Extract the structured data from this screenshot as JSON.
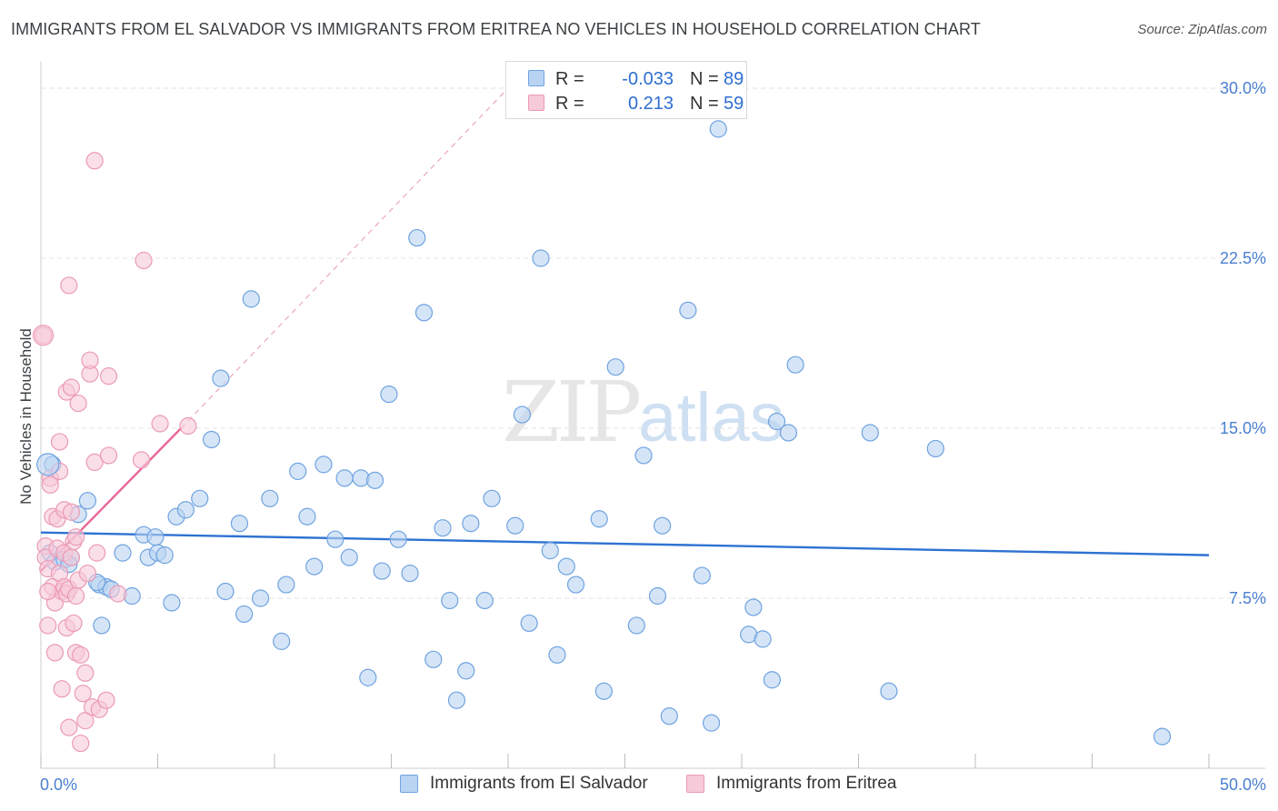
{
  "chart_data": {
    "type": "scatter",
    "title": "IMMIGRANTS FROM EL SALVADOR VS IMMIGRANTS FROM ERITREA NO VEHICLES IN HOUSEHOLD CORRELATION CHART",
    "source": "Source: ZipAtlas.com",
    "xlabel": "",
    "ylabel": "No Vehicles in Household",
    "xlim": [
      0,
      50
    ],
    "ylim": [
      0,
      30
    ],
    "x_tick_labels": [
      "0.0%",
      "50.0%"
    ],
    "y_ticks": [
      7.5,
      15.0,
      22.5,
      30.0
    ],
    "y_tick_labels": [
      "7.5%",
      "15.0%",
      "22.5%",
      "30.0%"
    ],
    "watermark": "ZIPatlas",
    "legend": {
      "rows": [
        {
          "r_label": "R =",
          "r_value": "-0.033",
          "n_label": "N =",
          "n_value": "89"
        },
        {
          "r_label": "R =",
          "r_value": "0.213",
          "n_label": "N =",
          "n_value": "59"
        }
      ]
    },
    "series": [
      {
        "name": "Immigrants from El Salvador",
        "color": "#6fa3e0",
        "fill": "#b9d3f2",
        "trend": {
          "x": [
            0,
            50
          ],
          "y": [
            10.4,
            9.4
          ],
          "color": "#2e72d2"
        },
        "points": [
          [
            0.5,
            13.4
          ],
          [
            0.4,
            9.5
          ],
          [
            0.6,
            9.1
          ],
          [
            1.0,
            9.2
          ],
          [
            1.3,
            9.3
          ],
          [
            1.6,
            11.2
          ],
          [
            1.2,
            9.0
          ],
          [
            2.0,
            11.8
          ],
          [
            2.5,
            8.1
          ],
          [
            2.8,
            8.0
          ],
          [
            3.0,
            7.9
          ],
          [
            2.4,
            8.2
          ],
          [
            2.6,
            6.3
          ],
          [
            3.5,
            9.5
          ],
          [
            3.9,
            7.6
          ],
          [
            4.4,
            10.3
          ],
          [
            4.6,
            9.3
          ],
          [
            5.0,
            9.5
          ],
          [
            5.3,
            9.4
          ],
          [
            4.9,
            10.2
          ],
          [
            5.6,
            7.3
          ],
          [
            5.8,
            11.1
          ],
          [
            6.2,
            11.4
          ],
          [
            6.8,
            11.9
          ],
          [
            7.3,
            14.5
          ],
          [
            7.7,
            17.2
          ],
          [
            7.9,
            7.8
          ],
          [
            8.5,
            10.8
          ],
          [
            8.7,
            6.8
          ],
          [
            9.0,
            20.7
          ],
          [
            9.4,
            7.5
          ],
          [
            9.8,
            11.9
          ],
          [
            10.3,
            5.6
          ],
          [
            10.5,
            8.1
          ],
          [
            11.0,
            13.1
          ],
          [
            11.4,
            11.1
          ],
          [
            11.7,
            8.9
          ],
          [
            12.1,
            13.4
          ],
          [
            12.6,
            10.1
          ],
          [
            13.0,
            12.8
          ],
          [
            13.2,
            9.3
          ],
          [
            13.7,
            12.8
          ],
          [
            14.0,
            4.0
          ],
          [
            14.3,
            12.7
          ],
          [
            14.6,
            8.7
          ],
          [
            14.9,
            16.5
          ],
          [
            15.3,
            10.1
          ],
          [
            15.8,
            8.6
          ],
          [
            16.1,
            23.4
          ],
          [
            16.4,
            20.1
          ],
          [
            16.8,
            4.8
          ],
          [
            17.2,
            10.6
          ],
          [
            17.5,
            7.4
          ],
          [
            17.8,
            3.0
          ],
          [
            18.2,
            4.3
          ],
          [
            18.4,
            10.8
          ],
          [
            19.0,
            7.4
          ],
          [
            19.3,
            11.9
          ],
          [
            20.3,
            10.7
          ],
          [
            20.6,
            15.6
          ],
          [
            20.9,
            6.4
          ],
          [
            21.4,
            22.5
          ],
          [
            21.8,
            9.6
          ],
          [
            22.1,
            5.0
          ],
          [
            22.5,
            8.9
          ],
          [
            22.9,
            8.1
          ],
          [
            23.9,
            11.0
          ],
          [
            24.1,
            3.4
          ],
          [
            24.6,
            17.7
          ],
          [
            25.5,
            6.3
          ],
          [
            25.8,
            13.8
          ],
          [
            26.4,
            7.6
          ],
          [
            26.6,
            10.7
          ],
          [
            26.9,
            2.3
          ],
          [
            27.7,
            20.2
          ],
          [
            28.3,
            8.5
          ],
          [
            28.7,
            2.0
          ],
          [
            29.0,
            28.2
          ],
          [
            30.3,
            5.9
          ],
          [
            30.5,
            7.1
          ],
          [
            30.9,
            5.7
          ],
          [
            31.3,
            3.9
          ],
          [
            31.5,
            15.3
          ],
          [
            32.0,
            14.8
          ],
          [
            32.3,
            17.8
          ],
          [
            35.5,
            14.8
          ],
          [
            36.3,
            3.4
          ],
          [
            38.3,
            14.1
          ],
          [
            48.0,
            1.4
          ]
        ]
      },
      {
        "name": "Immigrants from Eritrea",
        "color": "#eb9ab5",
        "fill": "#f6cad9",
        "trend": {
          "x": [
            0,
            6.0
          ],
          "y": [
            8.7,
            15.0
          ],
          "color": "#e8659a",
          "dash_extension": {
            "x": [
              6.0,
              20.0
            ],
            "y": [
              15.0,
              30.0
            ]
          }
        },
        "points": [
          [
            0.1,
            19.1
          ],
          [
            0.2,
            9.8
          ],
          [
            0.2,
            9.3
          ],
          [
            0.3,
            8.8
          ],
          [
            0.3,
            6.3
          ],
          [
            0.4,
            12.8
          ],
          [
            0.4,
            12.5
          ],
          [
            0.5,
            11.1
          ],
          [
            0.5,
            8.0
          ],
          [
            0.6,
            7.3
          ],
          [
            0.6,
            5.1
          ],
          [
            0.7,
            11.0
          ],
          [
            0.7,
            9.7
          ],
          [
            0.8,
            14.4
          ],
          [
            0.8,
            13.1
          ],
          [
            0.8,
            8.6
          ],
          [
            0.9,
            7.8
          ],
          [
            0.9,
            3.5
          ],
          [
            1.0,
            9.5
          ],
          [
            1.0,
            8.0
          ],
          [
            1.0,
            11.4
          ],
          [
            1.1,
            16.6
          ],
          [
            1.1,
            7.7
          ],
          [
            1.1,
            6.2
          ],
          [
            1.2,
            21.3
          ],
          [
            1.2,
            7.9
          ],
          [
            1.2,
            1.8
          ],
          [
            1.3,
            16.8
          ],
          [
            1.3,
            11.3
          ],
          [
            1.3,
            9.3
          ],
          [
            1.4,
            10.0
          ],
          [
            1.4,
            6.4
          ],
          [
            1.5,
            10.2
          ],
          [
            1.5,
            7.6
          ],
          [
            1.5,
            5.1
          ],
          [
            1.6,
            16.1
          ],
          [
            1.6,
            8.3
          ],
          [
            1.7,
            5.0
          ],
          [
            1.7,
            1.1
          ],
          [
            1.8,
            3.3
          ],
          [
            1.9,
            4.2
          ],
          [
            1.9,
            2.1
          ],
          [
            2.0,
            8.6
          ],
          [
            2.1,
            17.4
          ],
          [
            2.1,
            18.0
          ],
          [
            2.2,
            2.7
          ],
          [
            2.3,
            26.8
          ],
          [
            2.3,
            13.5
          ],
          [
            2.4,
            9.5
          ],
          [
            2.5,
            2.6
          ],
          [
            2.8,
            3.0
          ],
          [
            2.9,
            13.8
          ],
          [
            2.9,
            17.3
          ],
          [
            3.3,
            7.7
          ],
          [
            4.3,
            13.6
          ],
          [
            4.4,
            22.4
          ],
          [
            5.1,
            15.2
          ],
          [
            6.3,
            15.1
          ],
          [
            0.3,
            7.8
          ]
        ]
      }
    ]
  }
}
